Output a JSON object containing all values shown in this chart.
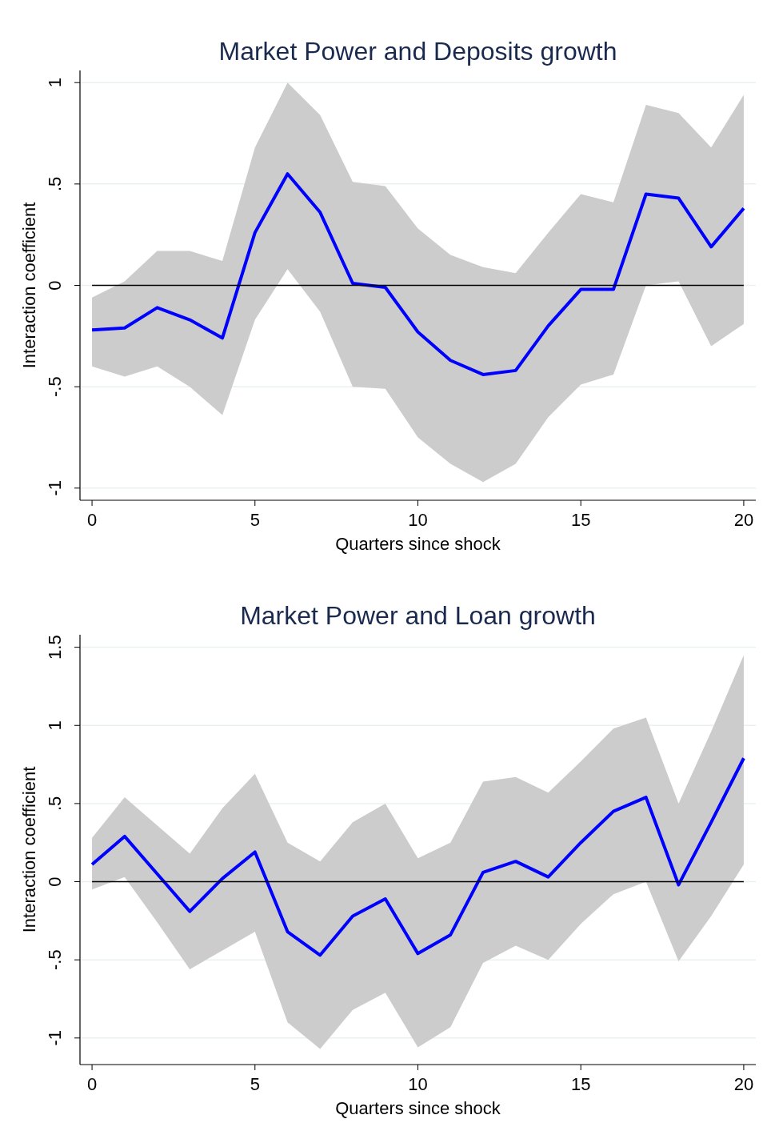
{
  "chart_data": [
    {
      "type": "line",
      "title": "Market Power and Deposits growth",
      "xlabel": "Quarters since shock",
      "ylabel": "Interaction coefficient",
      "x": [
        0,
        1,
        2,
        3,
        4,
        5,
        6,
        7,
        8,
        9,
        10,
        11,
        12,
        13,
        14,
        15,
        16,
        17,
        18,
        19,
        20
      ],
      "series": [
        {
          "color": "#0000ff",
          "values": [
            -0.22,
            -0.21,
            -0.11,
            -0.17,
            -0.26,
            0.26,
            0.55,
            0.36,
            0.01,
            -0.01,
            -0.23,
            -0.37,
            -0.44,
            -0.42,
            -0.2,
            -0.02,
            -0.02,
            0.45,
            0.43,
            0.19,
            0.38
          ],
          "lower": [
            -0.4,
            -0.45,
            -0.4,
            -0.5,
            -0.64,
            -0.17,
            0.08,
            -0.13,
            -0.5,
            -0.51,
            -0.75,
            -0.88,
            -0.97,
            -0.88,
            -0.65,
            -0.49,
            -0.44,
            0.0,
            0.02,
            -0.3,
            -0.19
          ],
          "upper": [
            -0.06,
            0.02,
            0.17,
            0.17,
            0.12,
            0.68,
            1.0,
            0.84,
            0.51,
            0.49,
            0.28,
            0.15,
            0.09,
            0.06,
            0.26,
            0.45,
            0.41,
            0.89,
            0.85,
            0.68,
            0.94
          ]
        }
      ],
      "xlim": [
        -0.37,
        20.37
      ],
      "ylim": [
        -1.06,
        1.06
      ],
      "xticks": [
        {
          "value": 0,
          "label": "0"
        },
        5,
        10,
        15,
        20
      ],
      "yticks": [
        {
          "value": -1,
          "label": "-1"
        },
        {
          "value": -0.5,
          "label": "-.5"
        },
        {
          "value": 0,
          "label": "0"
        },
        {
          "value": 0.5,
          "label": ".5"
        },
        1
      ],
      "grid": "y",
      "ref_lines": [
        {
          "axis": "y",
          "value": 0,
          "color": "#000000"
        }
      ]
    },
    {
      "type": "line",
      "title": "Market Power and Loan growth",
      "xlabel": "Quarters since shock",
      "ylabel": "Interaction coefficient",
      "x": [
        0,
        1,
        2,
        3,
        4,
        5,
        6,
        7,
        8,
        9,
        10,
        11,
        12,
        13,
        14,
        15,
        16,
        17,
        18,
        19,
        20
      ],
      "series": [
        {
          "color": "#0000ff",
          "values": [
            0.11,
            0.29,
            0.05,
            -0.19,
            0.02,
            0.19,
            -0.32,
            -0.47,
            -0.22,
            -0.11,
            -0.46,
            -0.34,
            0.06,
            0.13,
            0.03,
            0.25,
            0.45,
            0.54,
            -0.02,
            0.38,
            0.79
          ],
          "lower": [
            -0.05,
            0.03,
            -0.26,
            -0.56,
            -0.44,
            -0.32,
            -0.9,
            -1.07,
            -0.82,
            -0.71,
            -1.06,
            -0.93,
            -0.52,
            -0.41,
            -0.5,
            -0.27,
            -0.08,
            0.0,
            -0.51,
            -0.22,
            0.11
          ],
          "upper": [
            0.28,
            0.54,
            0.36,
            0.18,
            0.47,
            0.69,
            0.25,
            0.13,
            0.38,
            0.5,
            0.15,
            0.25,
            0.64,
            0.67,
            0.57,
            0.77,
            0.98,
            1.05,
            0.5,
            0.96,
            1.45
          ]
        }
      ],
      "xlim": [
        -0.37,
        20.37
      ],
      "ylim": [
        -1.17,
        1.58
      ],
      "xticks": [
        {
          "value": 0,
          "label": "0"
        },
        5,
        10,
        15,
        20
      ],
      "yticks": [
        {
          "value": -1,
          "label": "-1"
        },
        {
          "value": -0.5,
          "label": "-.5"
        },
        {
          "value": 0,
          "label": "0"
        },
        {
          "value": 0.5,
          "label": ".5"
        },
        1,
        {
          "value": 1.5,
          "label": "1.5"
        }
      ],
      "grid": "y",
      "ref_lines": [
        {
          "axis": "y",
          "value": 0,
          "color": "#000000"
        }
      ]
    }
  ]
}
